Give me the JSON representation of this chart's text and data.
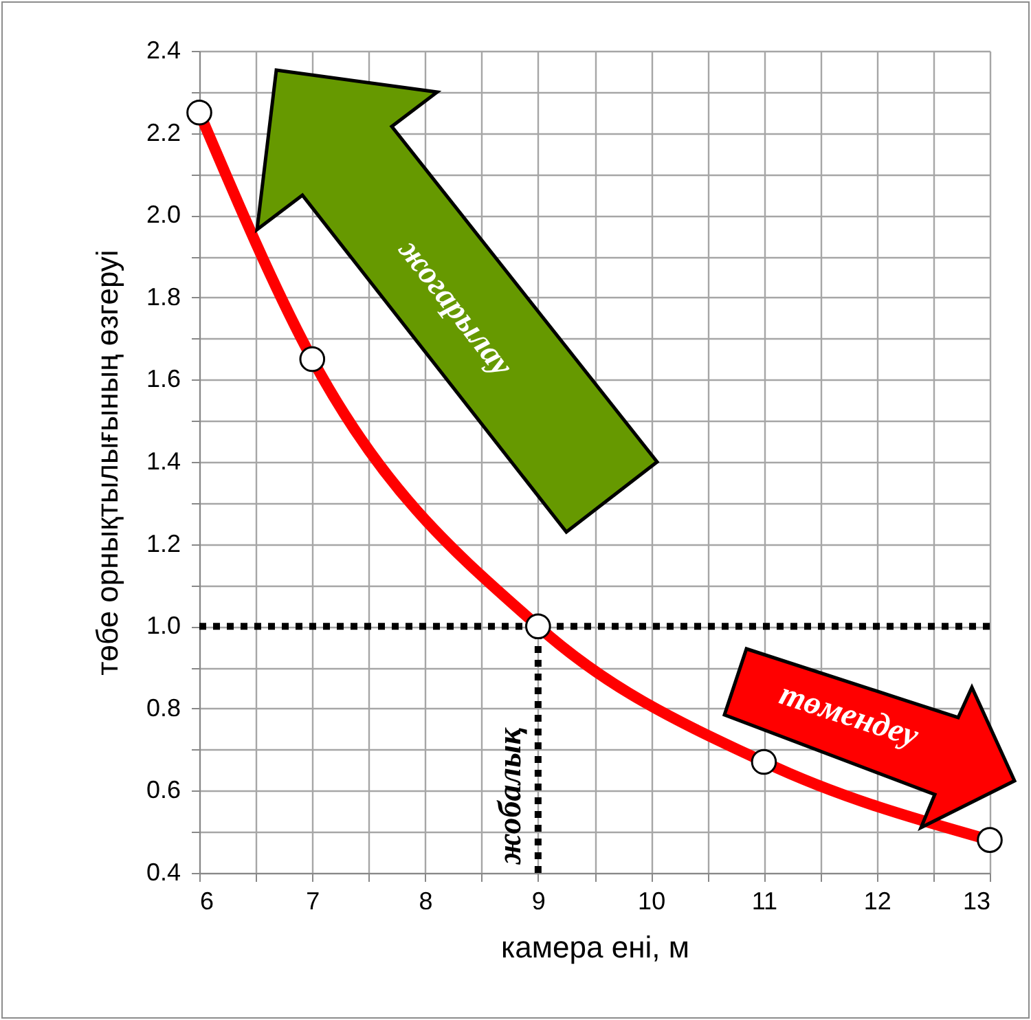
{
  "chart_data": {
    "type": "line",
    "xlabel": "камера ені, м",
    "ylabel": "төбе орнықтылығының өзгеруі",
    "x": [
      6,
      7,
      9,
      11,
      13
    ],
    "series": [
      {
        "color": "#ff0000",
        "values": [
          2.25,
          1.65,
          1.0,
          0.67,
          0.48
        ]
      }
    ],
    "xlim": [
      6,
      13
    ],
    "ylim": [
      0.4,
      2.4
    ],
    "xticks": [
      6,
      {
        "value": 6.5,
        "label": null
      },
      7,
      {
        "value": 7.5,
        "label": null
      },
      8,
      {
        "value": 8.5,
        "label": null
      },
      9,
      {
        "value": 9.5,
        "label": null
      },
      10,
      {
        "value": 10.5,
        "label": null
      },
      11,
      {
        "value": 11.5,
        "label": null
      },
      12,
      {
        "value": 12.5,
        "label": null
      },
      13
    ],
    "yticks": [
      0.4,
      {
        "value": 0.5,
        "label": null
      },
      0.6,
      {
        "value": 0.7,
        "label": null
      },
      0.8,
      {
        "value": 0.9,
        "label": null
      },
      {
        "value": 1,
        "label": "1.0"
      },
      {
        "value": 1.1,
        "label": null
      },
      1.2,
      {
        "value": 1.3,
        "label": null
      },
      1.4,
      {
        "value": 1.5,
        "label": null
      },
      1.6,
      {
        "value": 1.7,
        "label": null
      },
      1.8,
      {
        "value": 1.9,
        "label": null
      },
      {
        "value": 2,
        "label": "2.0"
      },
      {
        "value": 2.1,
        "label": null
      },
      2.2,
      {
        "value": 2.3,
        "label": null
      },
      2.4
    ],
    "grid": true,
    "marker": "circle",
    "line_style": "solid",
    "ref_lines": [
      {
        "axis": "y",
        "value": 1.0,
        "line_style": "dotted",
        "color": "#000000"
      },
      {
        "axis": "x",
        "value": 9,
        "label": "жобалық",
        "line_style": "dotted",
        "color": "#000000"
      }
    ],
    "annotations": [
      "жогарылау",
      "төмендеу"
    ]
  }
}
